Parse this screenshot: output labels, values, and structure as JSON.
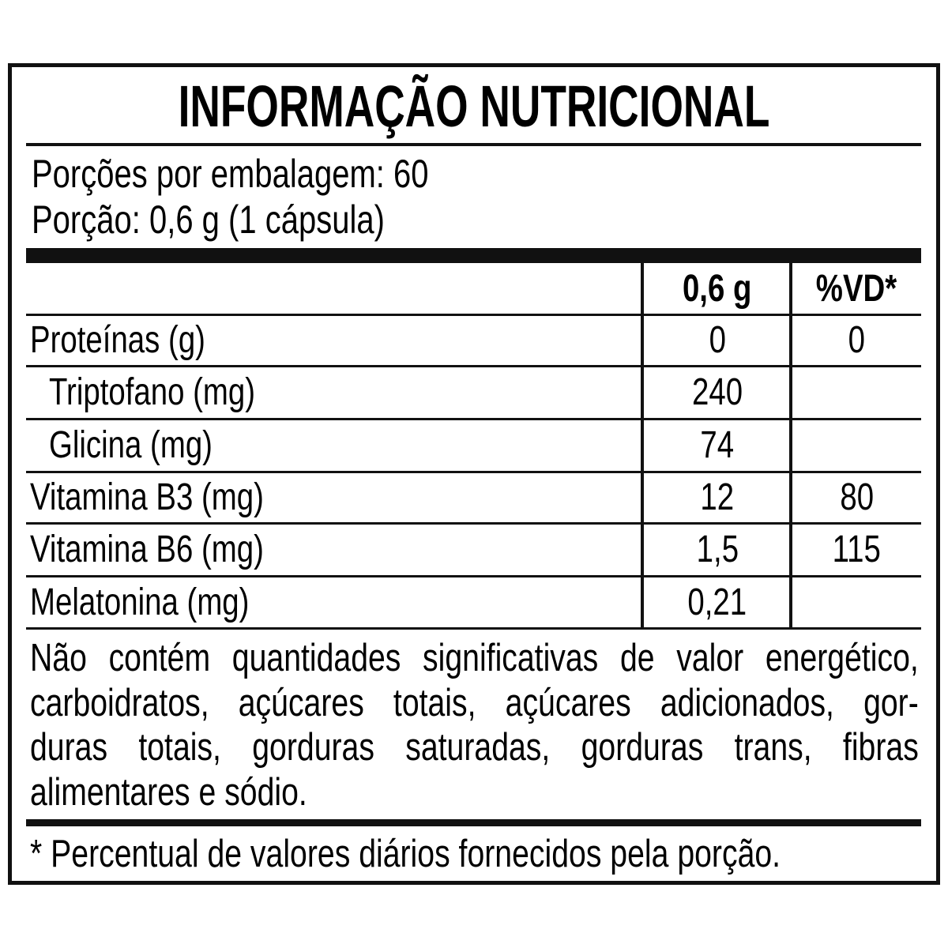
{
  "title": "INFORMAÇÃO NUTRICIONAL",
  "servings_per_package": "Porções por embalagem: 60",
  "serving_size": "Porção: 0,6 g (1 cápsula)",
  "table": {
    "headers": [
      "",
      "0,6 g",
      "%VD*"
    ],
    "rows": [
      {
        "name": "Proteínas (g)",
        "amount": "0",
        "dv": "0"
      },
      {
        "name": "Triptofano (mg)",
        "amount": "240",
        "dv": ""
      },
      {
        "name": "Glicina (mg)",
        "amount": "74",
        "dv": ""
      },
      {
        "name": "Vitamina B3 (mg)",
        "amount": "12",
        "dv": "80"
      },
      {
        "name": "Vitamina B6 (mg)",
        "amount": "1,5",
        "dv": "115"
      },
      {
        "name": "Melatonina (mg)",
        "amount": "0,21",
        "dv": ""
      }
    ]
  },
  "disclaimer_lines": [
    "Não contém quantidades significativas de valor energético,",
    "carboidratos, açúcares totais, açúcares adicionados, gor-",
    "duras totais, gorduras saturadas, gorduras trans, fibras",
    "alimentares e sódio."
  ],
  "footnote": "* Percentual de valores diários fornecidos pela porção."
}
